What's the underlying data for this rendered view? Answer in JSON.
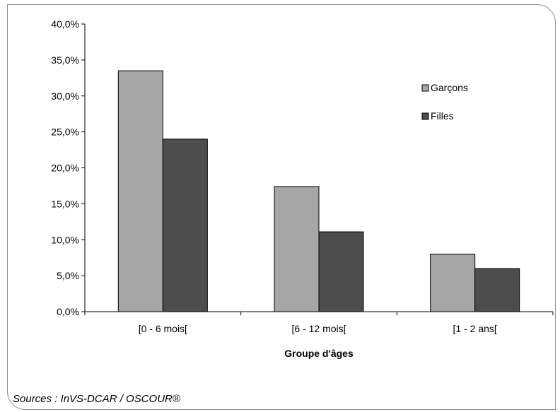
{
  "chart_data": {
    "type": "bar",
    "categories": [
      "[0 - 6 mois[",
      "[6 - 12 mois[",
      "[1 - 2 ans["
    ],
    "series": [
      {
        "name": "Garçons",
        "color": "#a6a6a6",
        "values": [
          33.5,
          17.4,
          8.0
        ]
      },
      {
        "name": "Filles",
        "color": "#4d4d4d",
        "values": [
          24.0,
          11.1,
          6.0
        ]
      }
    ],
    "xlabel": "Groupe d'âges",
    "ylabel": "",
    "ylim": [
      0,
      40
    ],
    "yticks": [
      "0,0%",
      "5,0%",
      "10,0%",
      "15,0%",
      "20,0%",
      "25,0%",
      "30,0%",
      "35,0%",
      "40,0%"
    ],
    "grid": false,
    "legend_position": "right"
  },
  "source": "Sources : InVS-DCAR / OSCOUR®"
}
